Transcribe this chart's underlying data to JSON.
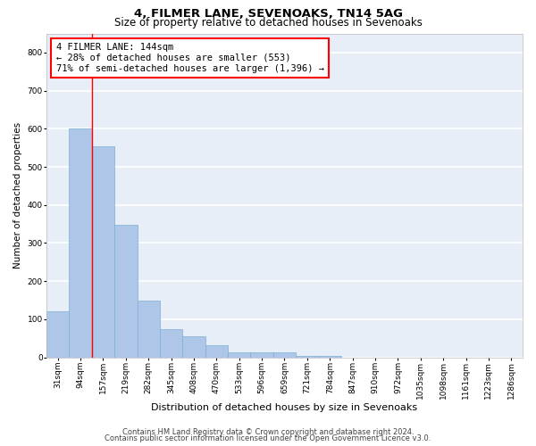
{
  "title1": "4, FILMER LANE, SEVENOAKS, TN14 5AG",
  "title2": "Size of property relative to detached houses in Sevenoaks",
  "xlabel": "Distribution of detached houses by size in Sevenoaks",
  "ylabel": "Number of detached properties",
  "categories": [
    "31sqm",
    "94sqm",
    "157sqm",
    "219sqm",
    "282sqm",
    "345sqm",
    "408sqm",
    "470sqm",
    "533sqm",
    "596sqm",
    "659sqm",
    "721sqm",
    "784sqm",
    "847sqm",
    "910sqm",
    "972sqm",
    "1035sqm",
    "1098sqm",
    "1161sqm",
    "1223sqm",
    "1286sqm"
  ],
  "values": [
    120,
    600,
    553,
    348,
    148,
    75,
    55,
    33,
    14,
    13,
    13,
    5,
    5,
    0,
    0,
    0,
    0,
    0,
    0,
    0,
    0
  ],
  "bar_color": "#aec6e8",
  "bar_edge_color": "#7bafd4",
  "red_line_x": 1.5,
  "annotation_line1": "4 FILMER LANE: 144sqm",
  "annotation_line2": "← 28% of detached houses are smaller (553)",
  "annotation_line3": "71% of semi-detached houses are larger (1,396) →",
  "annotation_box_color": "white",
  "annotation_box_edge_color": "red",
  "ylim": [
    0,
    850
  ],
  "yticks": [
    0,
    100,
    200,
    300,
    400,
    500,
    600,
    700,
    800
  ],
  "background_color": "#e8eef8",
  "grid_color": "white",
  "footer1": "Contains HM Land Registry data © Crown copyright and database right 2024.",
  "footer2": "Contains public sector information licensed under the Open Government Licence v3.0.",
  "title1_fontsize": 9.5,
  "title2_fontsize": 8.5,
  "xlabel_fontsize": 8,
  "ylabel_fontsize": 7.5,
  "tick_fontsize": 6.5,
  "annotation_fontsize": 7.5,
  "footer_fontsize": 6
}
